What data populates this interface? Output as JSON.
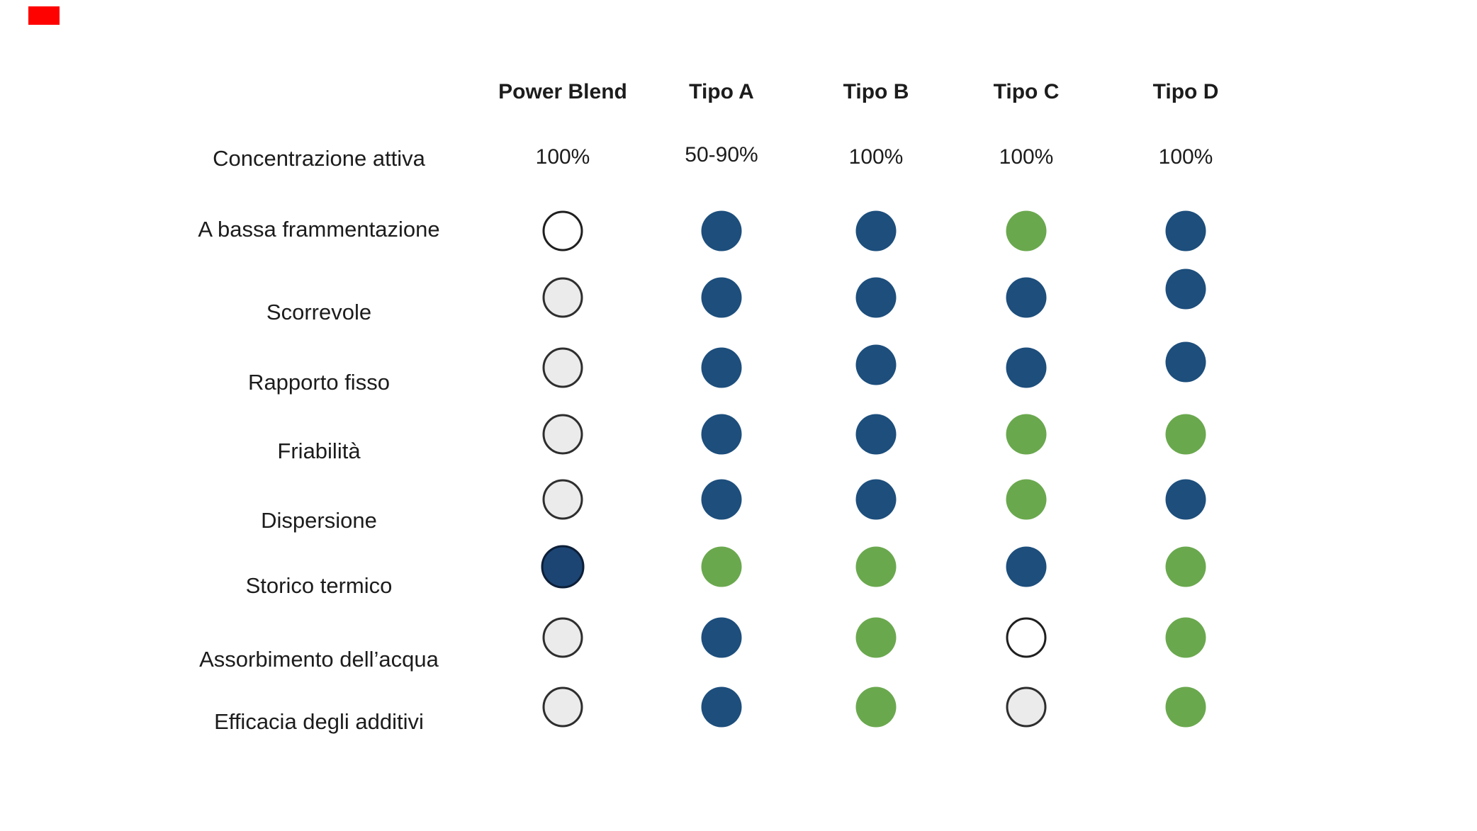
{
  "decor": {
    "red_marker_color": "#fe0101",
    "background_color": "#ffffff"
  },
  "chart_data": {
    "type": "table",
    "description": "Comparison matrix of blend types using colored rating dots",
    "legend_colors": {
      "blue": "#1d4e7c",
      "green": "#6aa84e",
      "gray": "#ebebeb",
      "white": "#ffffff",
      "navy": "#1c4574"
    },
    "columns": [
      "Power Blend",
      "Tipo A",
      "Tipo B",
      "Tipo C",
      "Tipo D"
    ],
    "rows": [
      {
        "label": "Concentrazione attiva",
        "kind": "text",
        "values": [
          "100%",
          "50-90%",
          "100%",
          "100%",
          "100%"
        ]
      },
      {
        "label": "A bassa frammentazione",
        "kind": "dots",
        "values": [
          "white",
          "blue",
          "blue",
          "green",
          "blue"
        ]
      },
      {
        "label": "Scorrevole",
        "kind": "dots",
        "values": [
          "gray",
          "blue",
          "blue",
          "blue",
          "blue"
        ]
      },
      {
        "label": "Rapporto fisso",
        "kind": "dots",
        "values": [
          "gray",
          "blue",
          "blue",
          "blue",
          "blue"
        ]
      },
      {
        "label": "Friabilità",
        "kind": "dots",
        "values": [
          "gray",
          "blue",
          "blue",
          "green",
          "green"
        ]
      },
      {
        "label": "Dispersione",
        "kind": "dots",
        "values": [
          "gray",
          "blue",
          "blue",
          "green",
          "blue"
        ]
      },
      {
        "label": "Storico termico",
        "kind": "dots",
        "values": [
          "navy",
          "green",
          "green",
          "blue",
          "green"
        ]
      },
      {
        "label": "Assorbimento dell’acqua",
        "kind": "dots",
        "values": [
          "gray",
          "blue",
          "green",
          "white",
          "green"
        ]
      },
      {
        "label": "Efficacia degli additivi",
        "kind": "dots",
        "values": [
          "gray",
          "blue",
          "green",
          "gray",
          "green"
        ]
      }
    ]
  }
}
